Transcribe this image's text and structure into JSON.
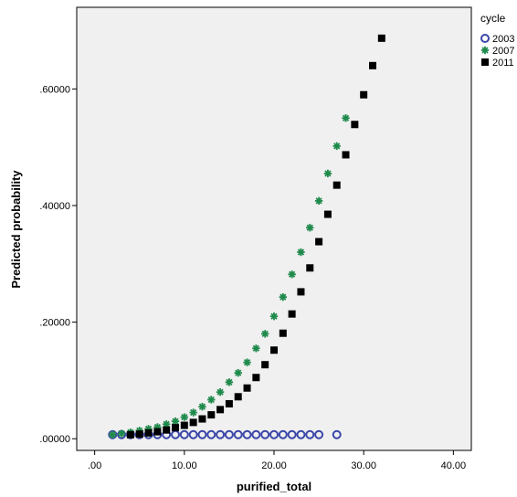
{
  "chart_data": {
    "type": "scatter",
    "title": "",
    "xlabel": "purified_total",
    "ylabel": "Predicted probability",
    "xlim": [
      -2,
      42
    ],
    "ylim": [
      -0.02,
      0.74
    ],
    "x_ticks": [
      0,
      10,
      20,
      30,
      40
    ],
    "x_tick_labels": [
      ".00",
      "10.00",
      "20.00",
      "30.00",
      "40.00"
    ],
    "y_ticks": [
      0,
      0.2,
      0.4,
      0.6
    ],
    "y_tick_labels": [
      ".00000",
      ".20000",
      ".40000",
      ".60000"
    ],
    "grid": false,
    "legend_title": "cycle",
    "legend_position": "top-right",
    "plot_background": "#f0f0f0",
    "series": [
      {
        "name": "2003",
        "marker": "circle-open",
        "color": "#3a46a8",
        "x": [
          2,
          3,
          4,
          5,
          6,
          7,
          8,
          9,
          10,
          11,
          12,
          13,
          14,
          15,
          16,
          17,
          18,
          19,
          20,
          21,
          22,
          23,
          24,
          25,
          27
        ],
        "y": [
          0.007,
          0.007,
          0.007,
          0.007,
          0.007,
          0.007,
          0.007,
          0.007,
          0.007,
          0.007,
          0.007,
          0.007,
          0.007,
          0.007,
          0.007,
          0.007,
          0.007,
          0.007,
          0.007,
          0.007,
          0.007,
          0.007,
          0.007,
          0.007,
          0.007
        ]
      },
      {
        "name": "2007",
        "marker": "asterisk",
        "color": "#1f8a4c",
        "x": [
          2,
          3,
          4,
          5,
          6,
          7,
          8,
          9,
          10,
          11,
          12,
          13,
          14,
          15,
          16,
          17,
          18,
          19,
          20,
          21,
          22,
          23,
          24,
          25,
          26,
          27,
          28
        ],
        "y": [
          0.007,
          0.009,
          0.011,
          0.014,
          0.017,
          0.02,
          0.025,
          0.03,
          0.037,
          0.045,
          0.055,
          0.067,
          0.08,
          0.097,
          0.113,
          0.131,
          0.155,
          0.18,
          0.21,
          0.243,
          0.282,
          0.32,
          0.362,
          0.408,
          0.455,
          0.502,
          0.55
        ]
      },
      {
        "name": "2011",
        "marker": "square",
        "color": "#000000",
        "x": [
          4,
          5,
          6,
          7,
          8,
          9,
          10,
          11,
          12,
          13,
          14,
          15,
          16,
          17,
          18,
          19,
          20,
          21,
          22,
          23,
          24,
          25,
          26,
          27,
          28,
          29,
          30,
          31,
          32
        ],
        "y": [
          0.007,
          0.008,
          0.01,
          0.012,
          0.015,
          0.019,
          0.023,
          0.028,
          0.034,
          0.041,
          0.05,
          0.06,
          0.072,
          0.087,
          0.105,
          0.127,
          0.152,
          0.181,
          0.214,
          0.252,
          0.293,
          0.338,
          0.385,
          0.435,
          0.487,
          0.539,
          0.59,
          0.64,
          0.687
        ]
      }
    ]
  }
}
